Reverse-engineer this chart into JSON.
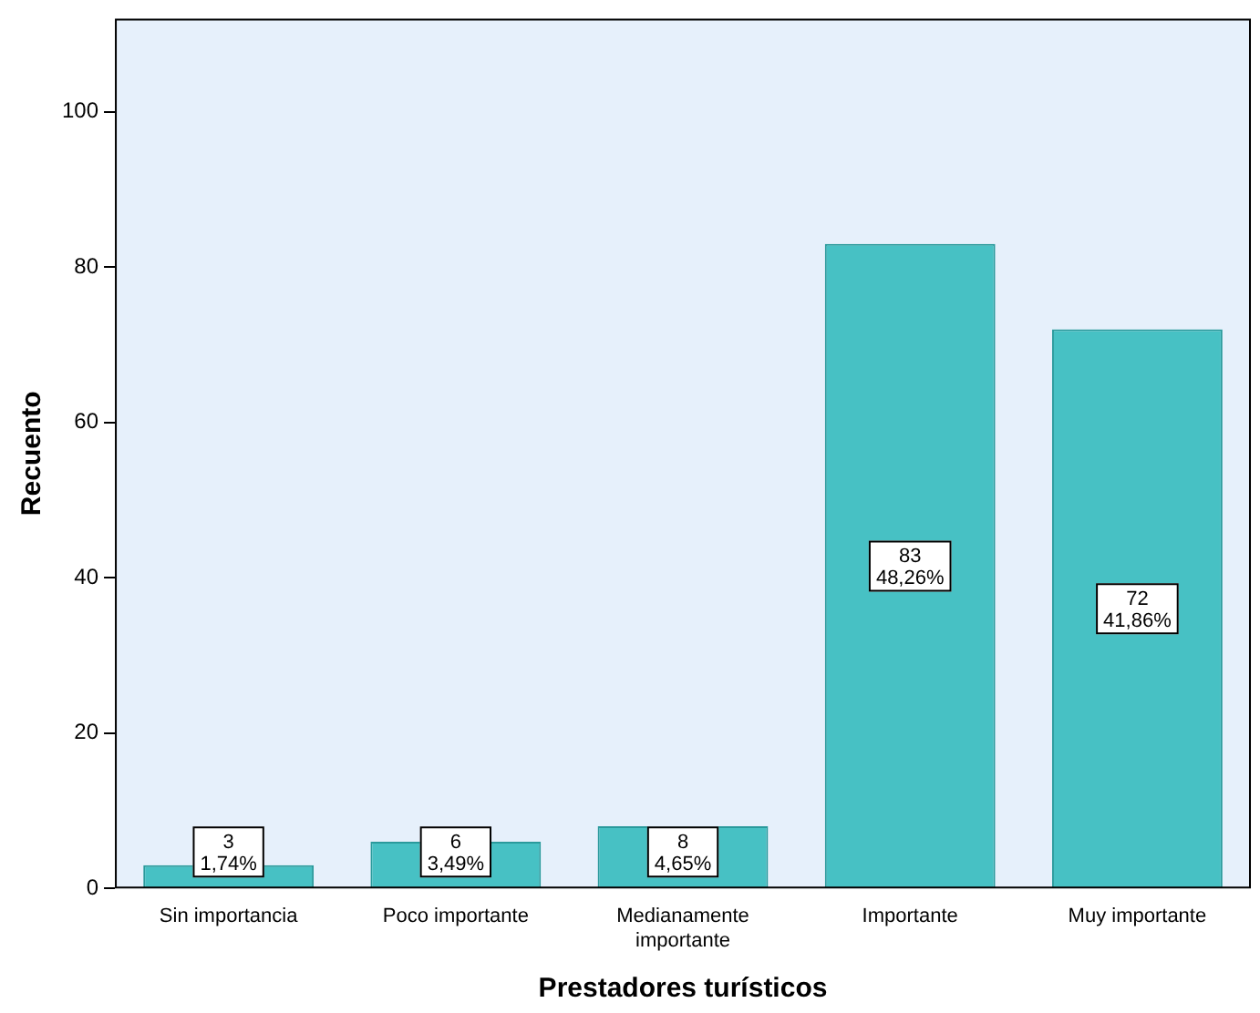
{
  "chart_data": {
    "type": "bar",
    "xlabel": "Prestadores turísticos",
    "ylabel": "Recuento",
    "categories": [
      "Sin importancia",
      "Poco importante",
      "Medianamente importante",
      "Importante",
      "Muy importante"
    ],
    "values": [
      3,
      6,
      8,
      83,
      72
    ],
    "color": "#47c1c4",
    "value_labels": [
      "3\n1,74%",
      "6\n3,49%",
      "8\n4,65%",
      "83\n48,26%",
      "72\n41,86%"
    ],
    "ylim": [
      0,
      112
    ],
    "yticks": [
      0,
      20,
      40,
      60,
      80,
      100
    ],
    "grid": false,
    "legend": false
  }
}
